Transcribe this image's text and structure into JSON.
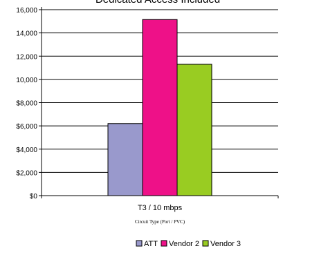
{
  "chart_data": {
    "type": "bar",
    "title": "Dedicated Access Included",
    "categories": [
      "T3 / 10 mbps"
    ],
    "xlabel": "Circuit Type (Port / PVC)",
    "ylabel": "",
    "ylim": [
      0,
      16000
    ],
    "yticks": [
      0,
      2000,
      4000,
      6000,
      8000,
      10000,
      12000,
      14000,
      16000
    ],
    "ytick_labels": [
      "$0",
      "$2,000",
      "$4,000",
      "$6,000",
      "$8,000",
      "10,000",
      "12,000",
      "14,000",
      "16,000"
    ],
    "grid": true,
    "legend": "bottom",
    "series": [
      {
        "name": "ATT",
        "values": [
          6200
        ],
        "color": "#9999cc"
      },
      {
        "name": "Vendor 2",
        "values": [
          15150
        ],
        "color": "#ee1188"
      },
      {
        "name": "Vendor 3",
        "values": [
          11300
        ],
        "color": "#99cc22"
      }
    ]
  }
}
